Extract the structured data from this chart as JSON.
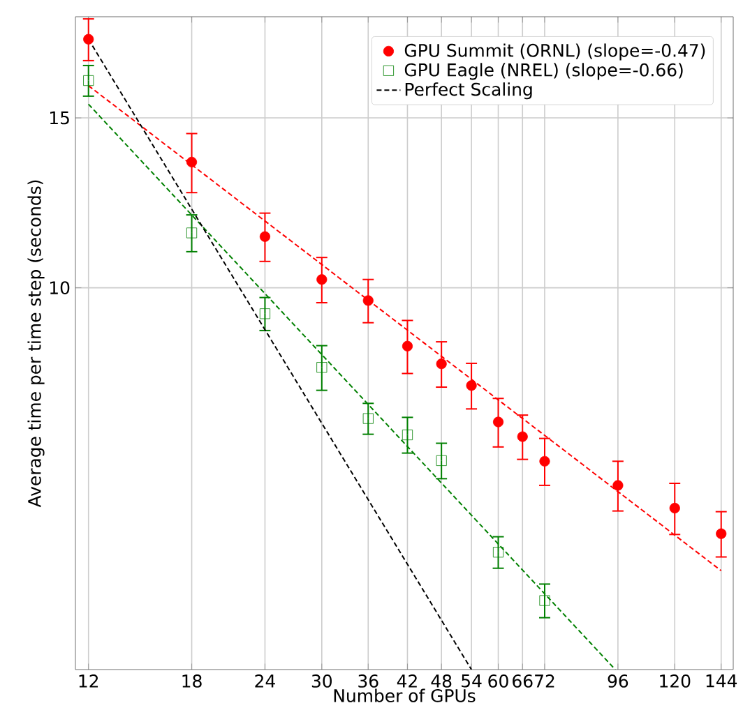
{
  "chart_data": {
    "type": "scatter",
    "xlabel": "Number of GPUs",
    "ylabel": "Average time per time step (seconds)",
    "log": "xy",
    "grid": true,
    "legend": "top right",
    "xlim": [
      11.4,
      151
    ],
    "ylim": [
      4.02,
      19.1
    ],
    "xticks": [
      12,
      18,
      24,
      30,
      36,
      42,
      48,
      54,
      60,
      66,
      72,
      96,
      120,
      144
    ],
    "yticks": [
      10,
      15
    ],
    "series": [
      {
        "name": "GPU Summit (ORNL) (slope=-0.47)",
        "marker": "circle",
        "color": "#ff0000",
        "x": [
          12,
          18,
          24,
          30,
          36,
          42,
          48,
          54,
          60,
          66,
          72,
          96,
          120,
          144
        ],
        "values": [
          18.1,
          13.5,
          11.3,
          10.2,
          9.7,
          8.7,
          8.34,
          7.92,
          7.26,
          7.01,
          6.61,
          6.24,
          5.91,
          5.56
        ],
        "errors": [
          0.9,
          0.95,
          0.65,
          0.55,
          0.5,
          0.55,
          0.45,
          0.43,
          0.42,
          0.37,
          0.37,
          0.37,
          0.36,
          0.3
        ]
      },
      {
        "name": "GPU Eagle (NREL) (slope=-0.66)",
        "marker": "square",
        "color": "#008000",
        "x": [
          12,
          18,
          24,
          30,
          36,
          42,
          48,
          60,
          72
        ],
        "values": [
          16.4,
          11.4,
          9.4,
          8.27,
          7.32,
          7.04,
          6.62,
          5.32,
          4.74
        ],
        "errors": [
          0.6,
          0.5,
          0.37,
          0.44,
          0.27,
          0.3,
          0.28,
          0.2,
          0.19
        ]
      },
      {
        "name": "Perfect Scaling",
        "type": "line",
        "line_style": "dashed",
        "color": "#000000",
        "x": [
          12,
          54
        ],
        "values": [
          18.1,
          4.02
        ]
      },
      {
        "type": "line",
        "line_style": "dashed",
        "color": "#ff0000",
        "x": [
          12,
          144
        ],
        "values": [
          16.2,
          5.09
        ]
      },
      {
        "type": "line",
        "line_style": "dashed",
        "color": "#008000",
        "x": [
          12,
          95
        ],
        "values": [
          15.5,
          4.02
        ]
      }
    ]
  }
}
